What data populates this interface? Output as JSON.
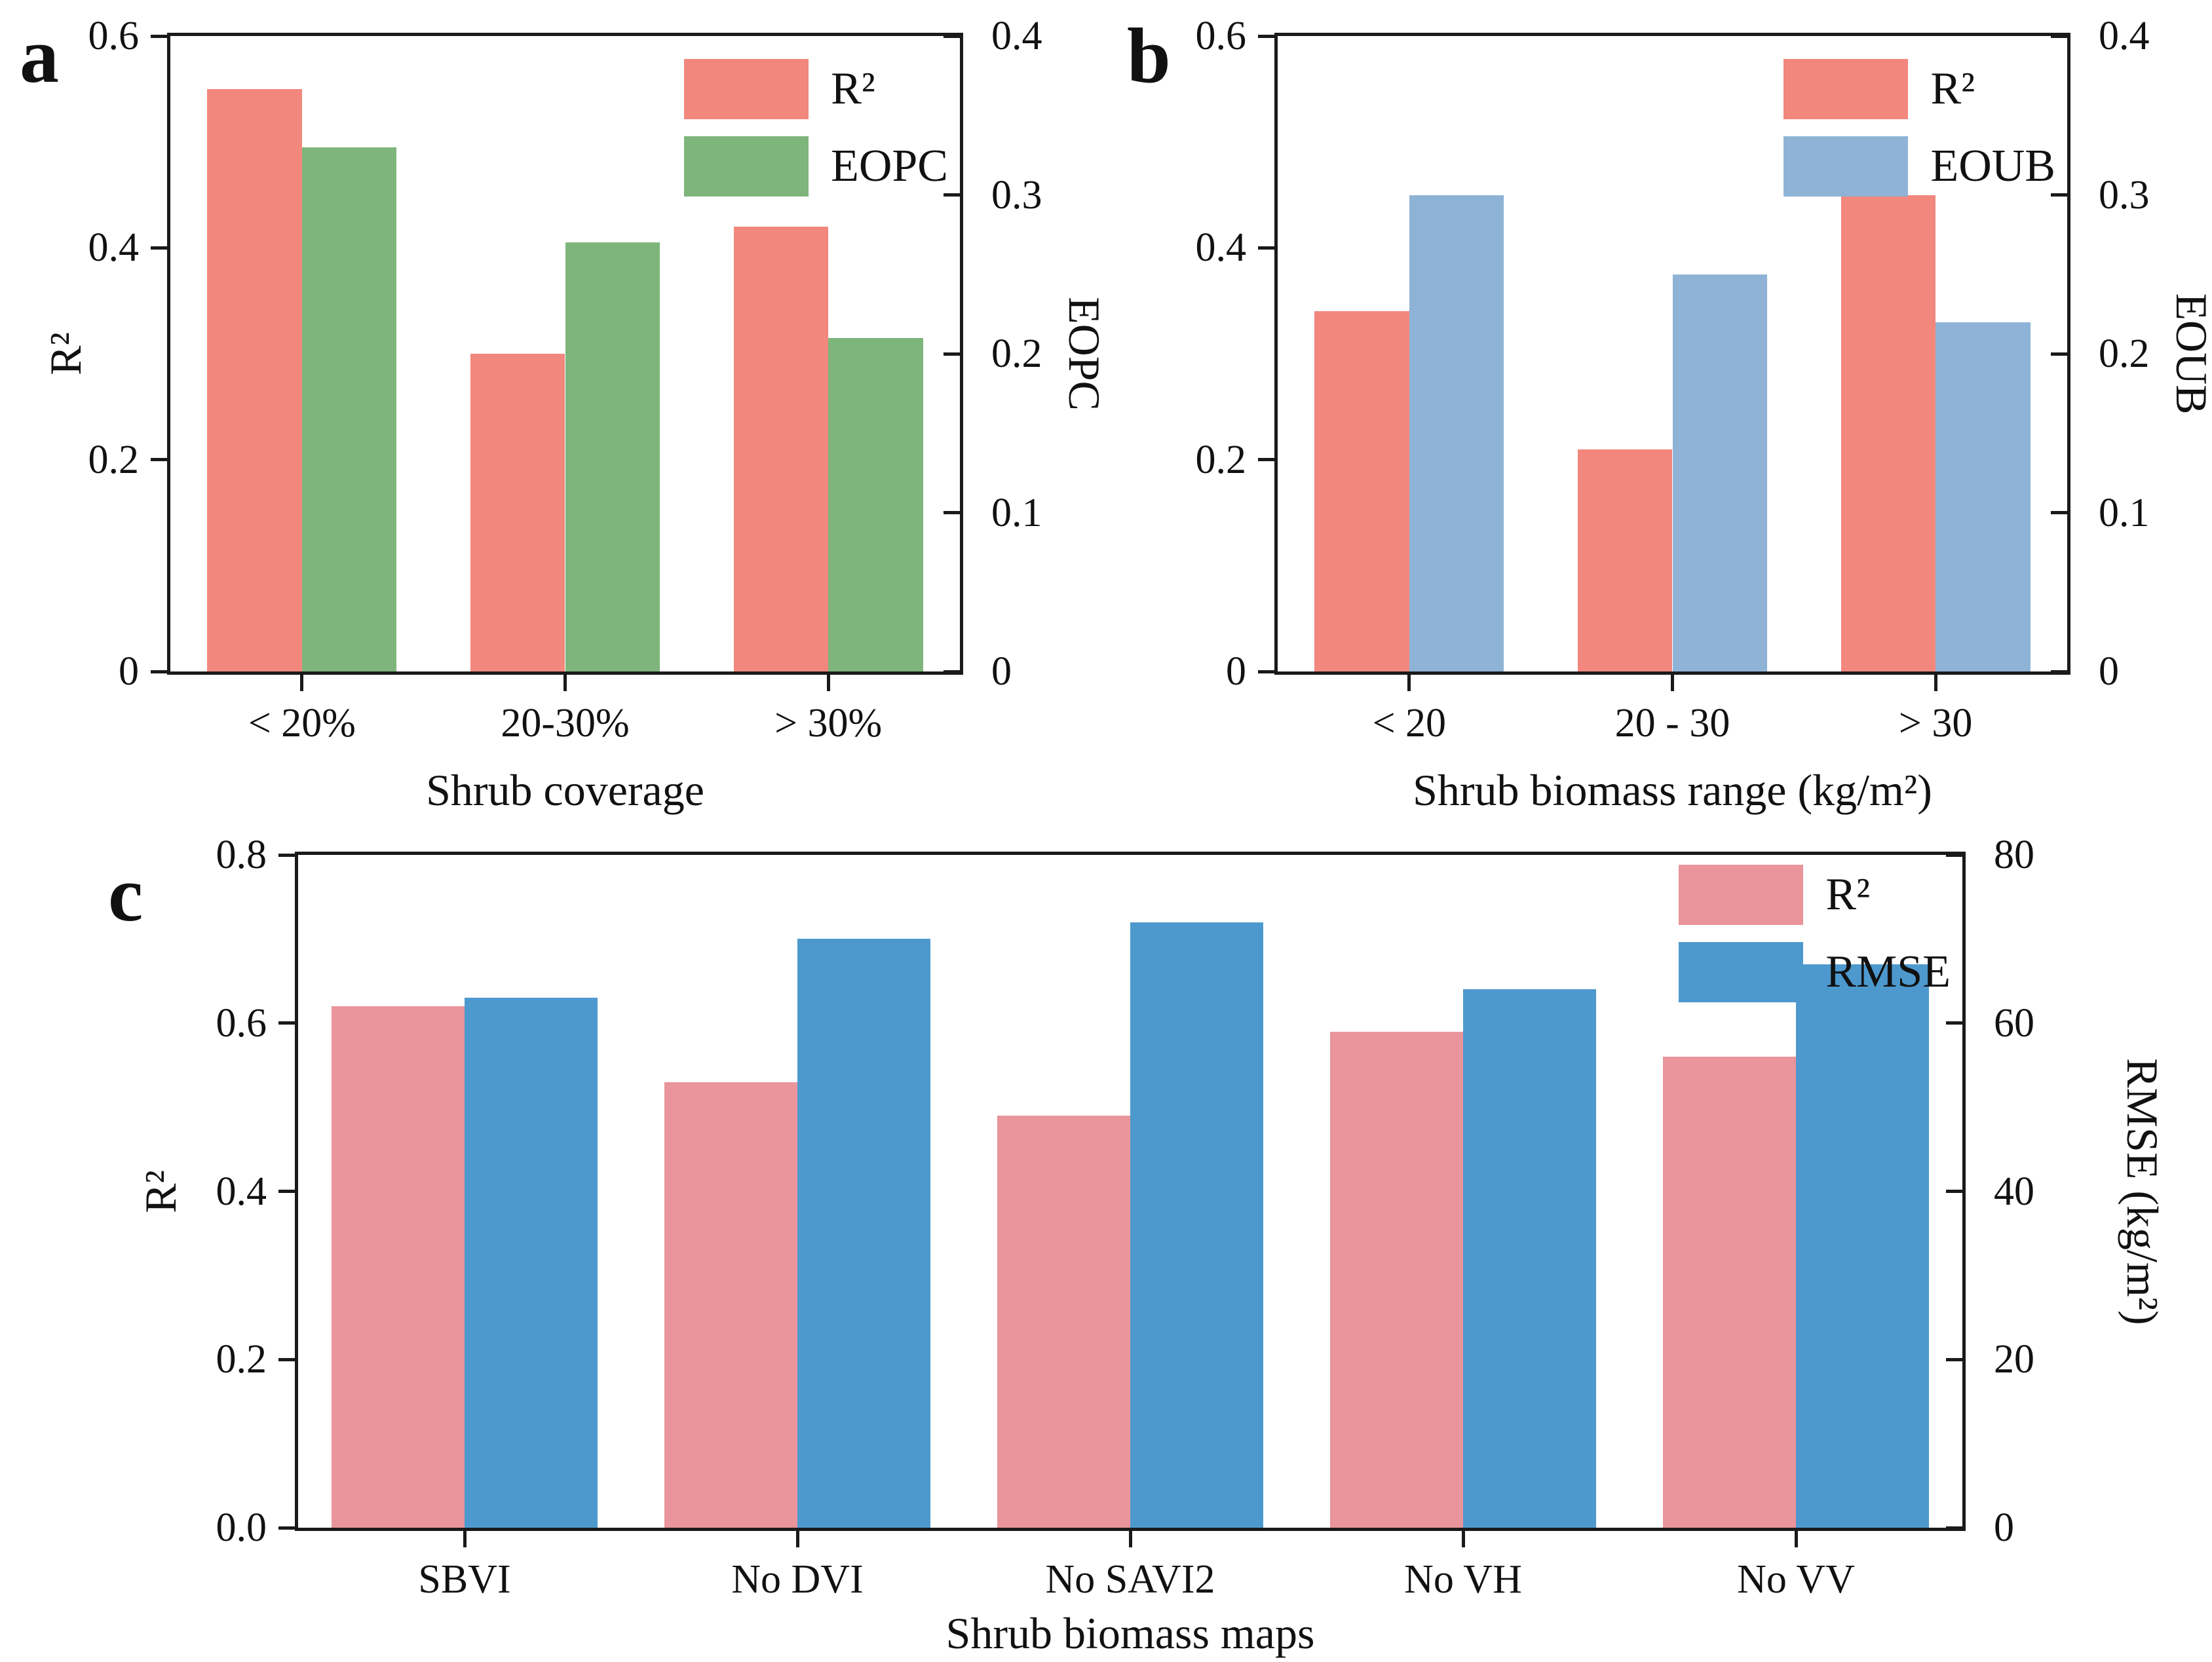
{
  "figure": {
    "background": "#ffffff",
    "axis_color": "#1a1a1a"
  },
  "chart_data": [
    {
      "type": "bar",
      "panel_letter": "a",
      "categories": [
        "< 20%",
        "20-30%",
        "> 30%"
      ],
      "series": [
        {
          "name": "R²",
          "axis": "left",
          "color": "#F2877D",
          "values": [
            0.55,
            0.3,
            0.42
          ]
        },
        {
          "name": "EOPC",
          "axis": "right",
          "color": "#7EB57B",
          "values": [
            0.33,
            0.27,
            0.21
          ]
        }
      ],
      "left_axis": {
        "title": "R²",
        "max": 0.6,
        "ticks": [
          {
            "v": 0.6,
            "label": "0.6"
          },
          {
            "v": 0.4,
            "label": "0.4"
          },
          {
            "v": 0.2,
            "label": "0.2"
          },
          {
            "v": 0,
            "label": "0"
          }
        ]
      },
      "right_axis": {
        "title": "EOPC",
        "max": 0.4,
        "ticks": [
          {
            "v": 0.4,
            "label": "0.4"
          },
          {
            "v": 0.3,
            "label": "0.3"
          },
          {
            "v": 0.2,
            "label": "0.2"
          },
          {
            "v": 0.1,
            "label": "0.1"
          },
          {
            "v": 0,
            "label": "0"
          }
        ]
      },
      "xlabel": "Shrub coverage",
      "legend_position": "top-right",
      "grid": false
    },
    {
      "type": "bar",
      "panel_letter": "b",
      "categories": [
        "< 20",
        "20 - 30",
        "> 30"
      ],
      "series": [
        {
          "name": "R²",
          "axis": "left",
          "color": "#F2877D",
          "values": [
            0.34,
            0.21,
            0.45
          ]
        },
        {
          "name": "EOUB",
          "axis": "right",
          "color": "#8FB3D7",
          "values": [
            0.3,
            0.25,
            0.22
          ]
        }
      ],
      "left_axis": {
        "title": "",
        "max": 0.6,
        "ticks": [
          {
            "v": 0.6,
            "label": "0.6"
          },
          {
            "v": 0.4,
            "label": "0.4"
          },
          {
            "v": 0.2,
            "label": "0.2"
          },
          {
            "v": 0,
            "label": "0"
          }
        ]
      },
      "right_axis": {
        "title": "EOUB",
        "max": 0.4,
        "ticks": [
          {
            "v": 0.4,
            "label": "0.4"
          },
          {
            "v": 0.3,
            "label": "0.3"
          },
          {
            "v": 0.2,
            "label": "0.2"
          },
          {
            "v": 0.1,
            "label": "0.1"
          },
          {
            "v": 0,
            "label": "0"
          }
        ]
      },
      "xlabel": "Shrub biomass range (kg/m²)",
      "legend_position": "top-right",
      "grid": false
    },
    {
      "type": "bar",
      "panel_letter": "c",
      "categories": [
        "SBVI",
        "No DVI",
        "No SAVI2",
        "No VH",
        "No VV"
      ],
      "series": [
        {
          "name": "R²",
          "axis": "left",
          "color": "#EA949B",
          "values": [
            0.62,
            0.53,
            0.49,
            0.59,
            0.56
          ]
        },
        {
          "name": "RMSE",
          "axis": "right",
          "color": "#4D99CE",
          "values": [
            63,
            70,
            72,
            64,
            67
          ]
        }
      ],
      "left_axis": {
        "title": "R²",
        "max": 0.8,
        "ticks": [
          {
            "v": 0.8,
            "label": "0.8"
          },
          {
            "v": 0.6,
            "label": "0.6"
          },
          {
            "v": 0.4,
            "label": "0.4"
          },
          {
            "v": 0.2,
            "label": "0.2"
          },
          {
            "v": 0,
            "label": "0.0"
          }
        ]
      },
      "right_axis": {
        "title": "RMSE (kg/m²)",
        "max": 80,
        "ticks": [
          {
            "v": 80,
            "label": "80"
          },
          {
            "v": 60,
            "label": "60"
          },
          {
            "v": 40,
            "label": "40"
          },
          {
            "v": 20,
            "label": "20"
          },
          {
            "v": 0,
            "label": "0"
          }
        ]
      },
      "xlabel": "Shrub biomass maps",
      "legend_position": "top-right",
      "grid": false
    }
  ]
}
